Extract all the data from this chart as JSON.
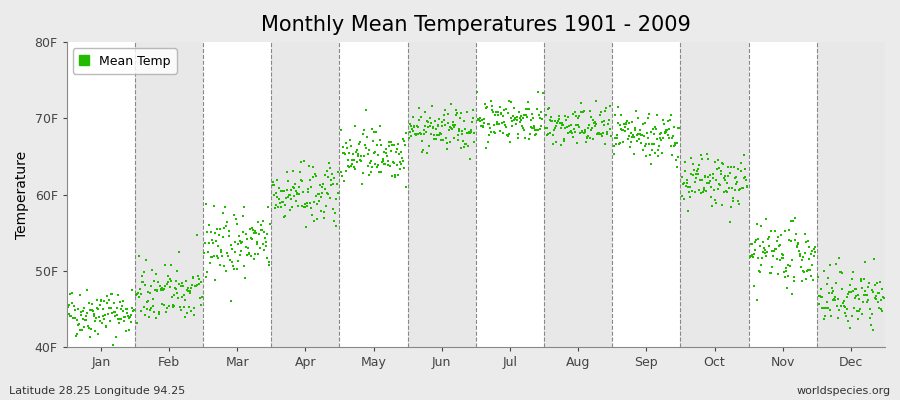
{
  "title": "Monthly Mean Temperatures 1901 - 2009",
  "ylabel": "Temperature",
  "ylim": [
    40,
    80
  ],
  "yticks": [
    40,
    50,
    60,
    70,
    80
  ],
  "ytick_labels": [
    "40F",
    "50F",
    "60F",
    "70F",
    "80F"
  ],
  "month_labels": [
    "Jan",
    "Feb",
    "Mar",
    "Apr",
    "May",
    "Jun",
    "Jul",
    "Aug",
    "Sep",
    "Oct",
    "Nov",
    "Dec"
  ],
  "dot_color": "#22BB00",
  "background_color": "#EBEBEB",
  "band_color_light": "#FFFFFF",
  "band_color_dark": "#E8E8E8",
  "subtitle_left": "Latitude 28.25 Longitude 94.25",
  "subtitle_right": "worldspecies.org",
  "legend_label": "Mean Temp",
  "n_years": 109,
  "monthly_means": [
    44.5,
    47.0,
    53.5,
    60.0,
    65.5,
    68.5,
    69.8,
    68.8,
    67.5,
    61.5,
    52.0,
    46.5
  ],
  "monthly_stds": [
    1.6,
    2.0,
    2.3,
    2.0,
    1.8,
    1.4,
    1.4,
    1.4,
    1.6,
    1.8,
    2.0,
    2.0
  ],
  "title_fontsize": 15,
  "axis_label_fontsize": 10,
  "tick_fontsize": 9,
  "subtitle_fontsize": 8,
  "dot_size": 4
}
